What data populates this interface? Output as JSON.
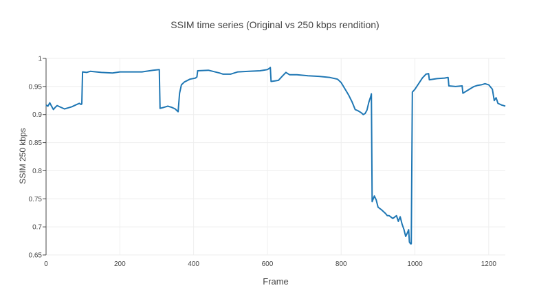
{
  "chart_data": {
    "type": "line",
    "title": "SSIM time series (Original vs 250 kbps rendition)",
    "xlabel": "Frame",
    "ylabel": "SSIM 250 kbps",
    "xlim": [
      0,
      1245
    ],
    "ylim": [
      0.65,
      1.0
    ],
    "x_ticks": [
      0,
      200,
      400,
      600,
      800,
      1000,
      1200
    ],
    "y_ticks": [
      0.65,
      0.7,
      0.75,
      0.8,
      0.85,
      0.9,
      0.95,
      1.0
    ],
    "x_tick_labels": [
      "0",
      "200",
      "400",
      "600",
      "800",
      "1000",
      "1200"
    ],
    "y_tick_labels": [
      "0.65",
      "0.7",
      "0.75",
      "0.8",
      "0.85",
      "0.9",
      "0.95",
      "1"
    ],
    "grid": true,
    "legend": "none",
    "series": [
      {
        "color": "#1f77b4",
        "points": [
          [
            0,
            0.917
          ],
          [
            5,
            0.915
          ],
          [
            10,
            0.921
          ],
          [
            15,
            0.915
          ],
          [
            20,
            0.909
          ],
          [
            25,
            0.913
          ],
          [
            30,
            0.916
          ],
          [
            40,
            0.913
          ],
          [
            50,
            0.91
          ],
          [
            60,
            0.912
          ],
          [
            70,
            0.914
          ],
          [
            80,
            0.917
          ],
          [
            90,
            0.92
          ],
          [
            95,
            0.918
          ],
          [
            97,
            0.919
          ],
          [
            99,
            0.976
          ],
          [
            110,
            0.975
          ],
          [
            120,
            0.977
          ],
          [
            150,
            0.975
          ],
          [
            180,
            0.974
          ],
          [
            200,
            0.976
          ],
          [
            230,
            0.976
          ],
          [
            260,
            0.976
          ],
          [
            290,
            0.979
          ],
          [
            307,
            0.98
          ],
          [
            309,
            0.911
          ],
          [
            320,
            0.913
          ],
          [
            330,
            0.915
          ],
          [
            340,
            0.913
          ],
          [
            350,
            0.91
          ],
          [
            358,
            0.905
          ],
          [
            362,
            0.938
          ],
          [
            367,
            0.953
          ],
          [
            375,
            0.958
          ],
          [
            390,
            0.963
          ],
          [
            405,
            0.965
          ],
          [
            409,
            0.967
          ],
          [
            411,
            0.978
          ],
          [
            440,
            0.979
          ],
          [
            470,
            0.974
          ],
          [
            480,
            0.972
          ],
          [
            500,
            0.972
          ],
          [
            520,
            0.976
          ],
          [
            550,
            0.977
          ],
          [
            580,
            0.978
          ],
          [
            600,
            0.98
          ],
          [
            607,
            0.983
          ],
          [
            608,
            0.984
          ],
          [
            610,
            0.959
          ],
          [
            620,
            0.96
          ],
          [
            630,
            0.961
          ],
          [
            640,
            0.968
          ],
          [
            650,
            0.975
          ],
          [
            660,
            0.971
          ],
          [
            680,
            0.971
          ],
          [
            710,
            0.969
          ],
          [
            740,
            0.968
          ],
          [
            770,
            0.966
          ],
          [
            790,
            0.963
          ],
          [
            800,
            0.957
          ],
          [
            810,
            0.946
          ],
          [
            820,
            0.935
          ],
          [
            830,
            0.922
          ],
          [
            838,
            0.909
          ],
          [
            845,
            0.907
          ],
          [
            850,
            0.905
          ],
          [
            855,
            0.903
          ],
          [
            860,
            0.9
          ],
          [
            865,
            0.902
          ],
          [
            870,
            0.908
          ],
          [
            875,
            0.922
          ],
          [
            880,
            0.932
          ],
          [
            882,
            0.937
          ],
          [
            884,
            0.745
          ],
          [
            890,
            0.755
          ],
          [
            895,
            0.748
          ],
          [
            900,
            0.735
          ],
          [
            910,
            0.73
          ],
          [
            920,
            0.724
          ],
          [
            925,
            0.72
          ],
          [
            930,
            0.72
          ],
          [
            940,
            0.715
          ],
          [
            950,
            0.72
          ],
          [
            955,
            0.71
          ],
          [
            960,
            0.718
          ],
          [
            965,
            0.705
          ],
          [
            970,
            0.696
          ],
          [
            975,
            0.683
          ],
          [
            980,
            0.69
          ],
          [
            983,
            0.695
          ],
          [
            985,
            0.673
          ],
          [
            988,
            0.67
          ],
          [
            990,
            0.67
          ],
          [
            993,
            0.94
          ],
          [
            1000,
            0.945
          ],
          [
            1010,
            0.955
          ],
          [
            1020,
            0.965
          ],
          [
            1030,
            0.972
          ],
          [
            1037,
            0.973
          ],
          [
            1039,
            0.962
          ],
          [
            1060,
            0.964
          ],
          [
            1080,
            0.965
          ],
          [
            1090,
            0.966
          ],
          [
            1092,
            0.951
          ],
          [
            1110,
            0.95
          ],
          [
            1128,
            0.951
          ],
          [
            1130,
            0.938
          ],
          [
            1140,
            0.942
          ],
          [
            1150,
            0.946
          ],
          [
            1160,
            0.95
          ],
          [
            1170,
            0.952
          ],
          [
            1180,
            0.953
          ],
          [
            1190,
            0.955
          ],
          [
            1200,
            0.953
          ],
          [
            1210,
            0.945
          ],
          [
            1215,
            0.925
          ],
          [
            1220,
            0.93
          ],
          [
            1225,
            0.92
          ],
          [
            1235,
            0.917
          ],
          [
            1240,
            0.916
          ],
          [
            1245,
            0.915
          ]
        ]
      }
    ]
  }
}
